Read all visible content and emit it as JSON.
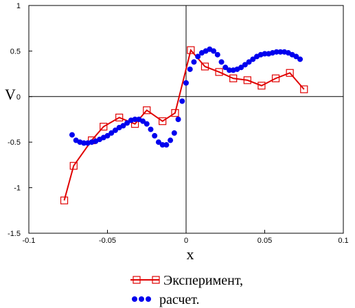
{
  "chart_data": {
    "type": "line",
    "xlabel": "x",
    "ylabel": "V",
    "xlim": [
      -0.1,
      0.1
    ],
    "ylim": [
      -1.5,
      1
    ],
    "xticks": [
      -0.1,
      -0.05,
      0,
      0.05,
      0.1
    ],
    "xtick_labels": [
      "-0.1",
      "-0.05",
      "0",
      "0.05",
      "0.1"
    ],
    "yticks": [
      -1.5,
      -1,
      -0.5,
      0,
      0.5,
      1
    ],
    "ytick_labels": [
      "-1.5",
      "-1",
      "-0.5",
      "0",
      "0.5",
      "1"
    ],
    "grid": false,
    "legend_position": "bottom",
    "series": [
      {
        "name": "Эксперимент,",
        "style": "line-square",
        "color": "#e00000",
        "x": [
          -0.0775,
          -0.0715,
          -0.06,
          -0.0525,
          -0.0425,
          -0.0325,
          -0.025,
          -0.015,
          -0.007,
          0.003,
          0.012,
          0.021,
          0.03,
          0.039,
          0.048,
          0.057,
          0.066,
          0.075
        ],
        "y": [
          -1.14,
          -0.76,
          -0.48,
          -0.33,
          -0.23,
          -0.3,
          -0.15,
          -0.27,
          -0.18,
          0.51,
          0.33,
          0.27,
          0.2,
          0.18,
          0.12,
          0.2,
          0.26,
          0.08
        ]
      },
      {
        "name": "расчет.",
        "style": "dots",
        "color": "#0000ee",
        "x": [
          -0.0725,
          -0.07,
          -0.0675,
          -0.065,
          -0.0625,
          -0.06,
          -0.0575,
          -0.055,
          -0.0525,
          -0.05,
          -0.0475,
          -0.045,
          -0.0425,
          -0.04,
          -0.0375,
          -0.035,
          -0.0325,
          -0.03,
          -0.0275,
          -0.025,
          -0.0225,
          -0.02,
          -0.0175,
          -0.015,
          -0.0125,
          -0.01,
          -0.0075,
          -0.005,
          -0.0025,
          0.0,
          0.0025,
          0.005,
          0.0075,
          0.01,
          0.0125,
          0.015,
          0.0175,
          0.02,
          0.0225,
          0.025,
          0.0275,
          0.03,
          0.0325,
          0.035,
          0.0375,
          0.04,
          0.0425,
          0.045,
          0.0475,
          0.05,
          0.0525,
          0.055,
          0.0575,
          0.06,
          0.0625,
          0.065,
          0.0675,
          0.07,
          0.0725
        ],
        "y": [
          -0.42,
          -0.48,
          -0.5,
          -0.51,
          -0.51,
          -0.5,
          -0.49,
          -0.47,
          -0.45,
          -0.43,
          -0.4,
          -0.37,
          -0.34,
          -0.32,
          -0.29,
          -0.26,
          -0.25,
          -0.25,
          -0.27,
          -0.3,
          -0.36,
          -0.43,
          -0.5,
          -0.53,
          -0.53,
          -0.48,
          -0.4,
          -0.25,
          -0.05,
          0.15,
          0.3,
          0.38,
          0.44,
          0.48,
          0.5,
          0.52,
          0.5,
          0.46,
          0.38,
          0.32,
          0.29,
          0.29,
          0.3,
          0.32,
          0.35,
          0.38,
          0.41,
          0.44,
          0.46,
          0.47,
          0.47,
          0.48,
          0.49,
          0.49,
          0.49,
          0.48,
          0.46,
          0.44,
          0.41
        ]
      }
    ]
  }
}
